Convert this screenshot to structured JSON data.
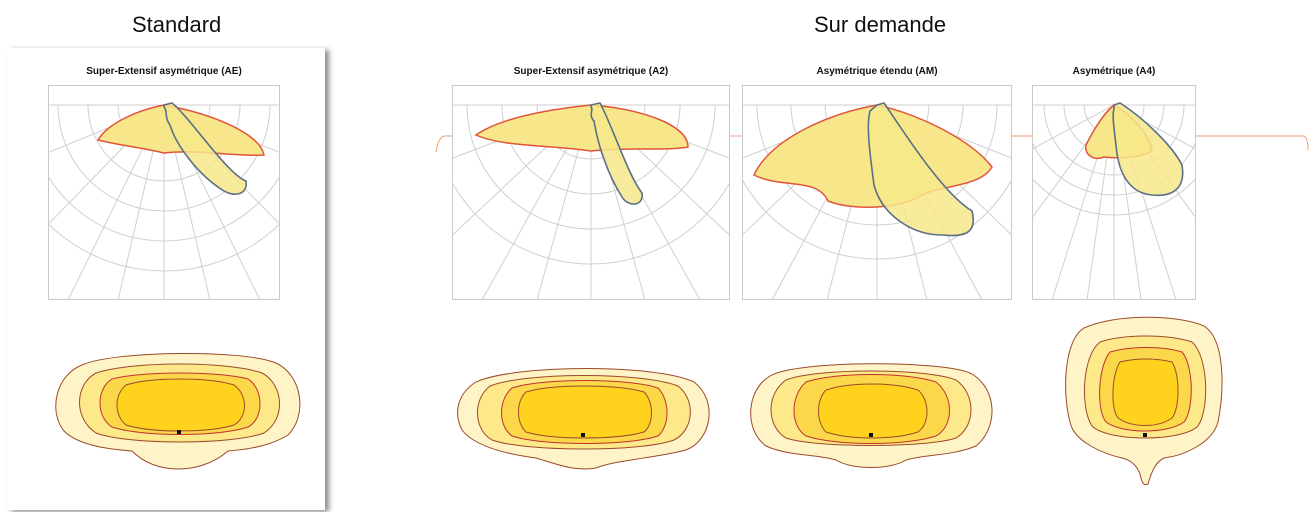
{
  "headings": {
    "standard": "Standard",
    "on_demand": "Sur demande"
  },
  "panels": [
    {
      "id": "ae",
      "title": "Super-Extensif asymétrique (AE)"
    },
    {
      "id": "a2",
      "title": "Super-Extensif asymétrique (A2)"
    },
    {
      "id": "am",
      "title": "Asymétrique étendu (AM)"
    },
    {
      "id": "a4",
      "title": "Asymétrique (A4)"
    }
  ],
  "colors": {
    "lobe_fill": "#f7e78a",
    "red_curve": "#e2543a",
    "blue_curve": "#5b7087",
    "grid": "#c9c9c9",
    "iso_outer": "#fff4c7",
    "iso_mid1": "#fde98a",
    "iso_mid2": "#fbd84a",
    "iso_core": "#ffd21e",
    "iso_stroke": "#9b4a2a",
    "connector": "#f0a070"
  }
}
